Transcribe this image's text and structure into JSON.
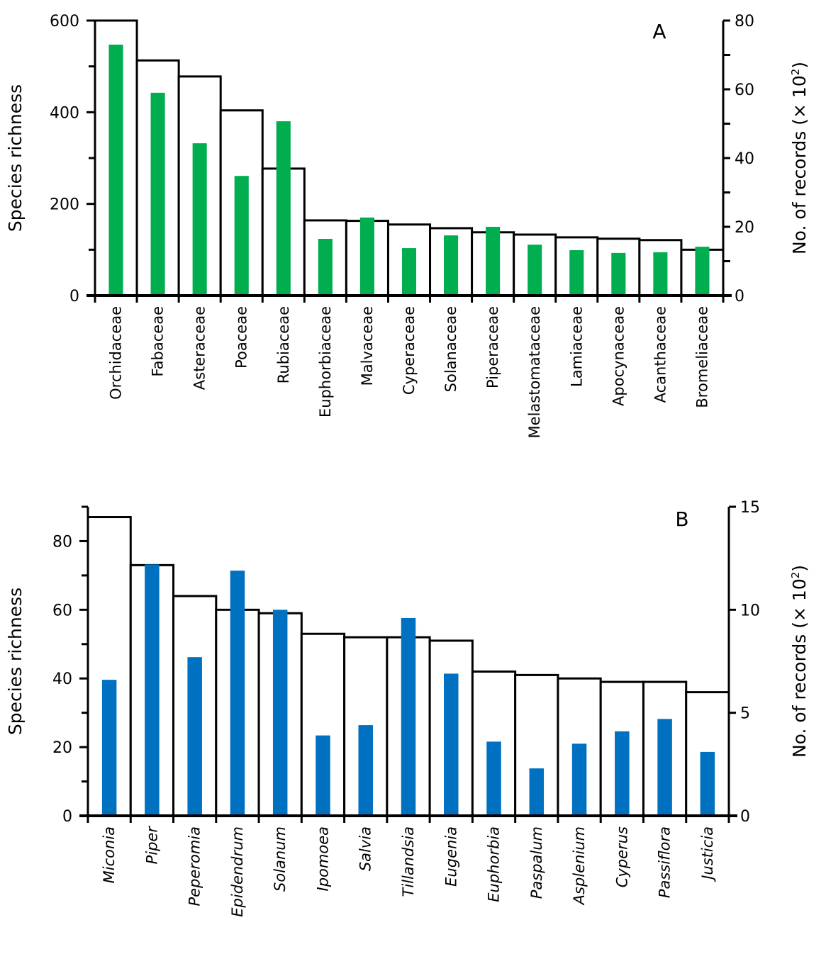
{
  "chart_data": [
    {
      "type": "bar",
      "panel": "A",
      "categories": [
        "Orchidaceae",
        "Fabaceae",
        "Asteraceae",
        "Poaceae",
        "Rubiaceae",
        "Euphorbiaceae",
        "Malvaceae",
        "Cyperaceae",
        "Solanaceae",
        "Piperaceae",
        "Melastomataceae",
        "Lamiaceae",
        "Apocynaceae",
        "Acanthaceae",
        "Bromeliaceae"
      ],
      "category_style": "normal",
      "series": [
        {
          "name": "Species richness",
          "axis": "left",
          "style": "outline",
          "color": "#000000",
          "values": [
            600,
            513,
            478,
            404,
            277,
            164,
            163,
            155,
            147,
            138,
            133,
            127,
            124,
            121,
            100
          ]
        },
        {
          "name": "No. of records (× 10²)",
          "axis": "right",
          "style": "filled",
          "color": "#00AD4F",
          "values": [
            73,
            59,
            44.3,
            34.8,
            50.7,
            16.5,
            22.7,
            13.8,
            17.5,
            20,
            14.8,
            13.2,
            12.4,
            12.6,
            14.2
          ]
        }
      ],
      "ylabel": "Species richness",
      "ylabel_right_prefix": "No. of records (× 10",
      "ylabel_right_sup": "2",
      "ylabel_right_suffix": ")",
      "ylim": [
        0,
        600
      ],
      "yticks": [
        0,
        200,
        400,
        600
      ],
      "yminor_step": 100,
      "ylim_right": [
        0,
        80
      ],
      "yticks_right": [
        0,
        20,
        40,
        60,
        80
      ],
      "yminor_step_right": 10,
      "grid": false
    },
    {
      "type": "bar",
      "panel": "B",
      "categories": [
        "Miconia",
        "Piper",
        "Peperomia",
        "Epidendrum",
        "Solanum",
        "Ipomoea",
        "Salvia",
        "Tillandsia",
        "Eugenia",
        "Euphorbia",
        "Paspalum",
        "Asplenium",
        "Cyperus",
        "Passiflora",
        "Justicia"
      ],
      "category_style": "italic",
      "series": [
        {
          "name": "Species richness",
          "axis": "left",
          "style": "outline",
          "color": "#000000",
          "values": [
            87,
            73,
            64,
            60,
            59,
            53,
            52,
            52,
            51,
            42,
            41,
            40,
            39,
            39,
            36
          ]
        },
        {
          "name": "No. of records (× 10²)",
          "axis": "right",
          "style": "filled",
          "color": "#0070C0",
          "values": [
            6.6,
            12.2,
            7.7,
            11.9,
            10.0,
            3.9,
            4.4,
            9.6,
            6.9,
            3.6,
            2.3,
            3.5,
            4.1,
            4.7,
            3.1
          ]
        }
      ],
      "ylabel": "Species richness",
      "ylabel_right_prefix": "No. of records (× 10",
      "ylabel_right_sup": "2",
      "ylabel_right_suffix": ")",
      "ylim": [
        0,
        90
      ],
      "yticks": [
        0,
        20,
        40,
        60,
        80
      ],
      "yminor_step": 10,
      "ylim_right": [
        0,
        15
      ],
      "yticks_right": [
        0,
        5,
        10,
        15
      ],
      "yminor_step_right": 5,
      "grid": false
    }
  ]
}
